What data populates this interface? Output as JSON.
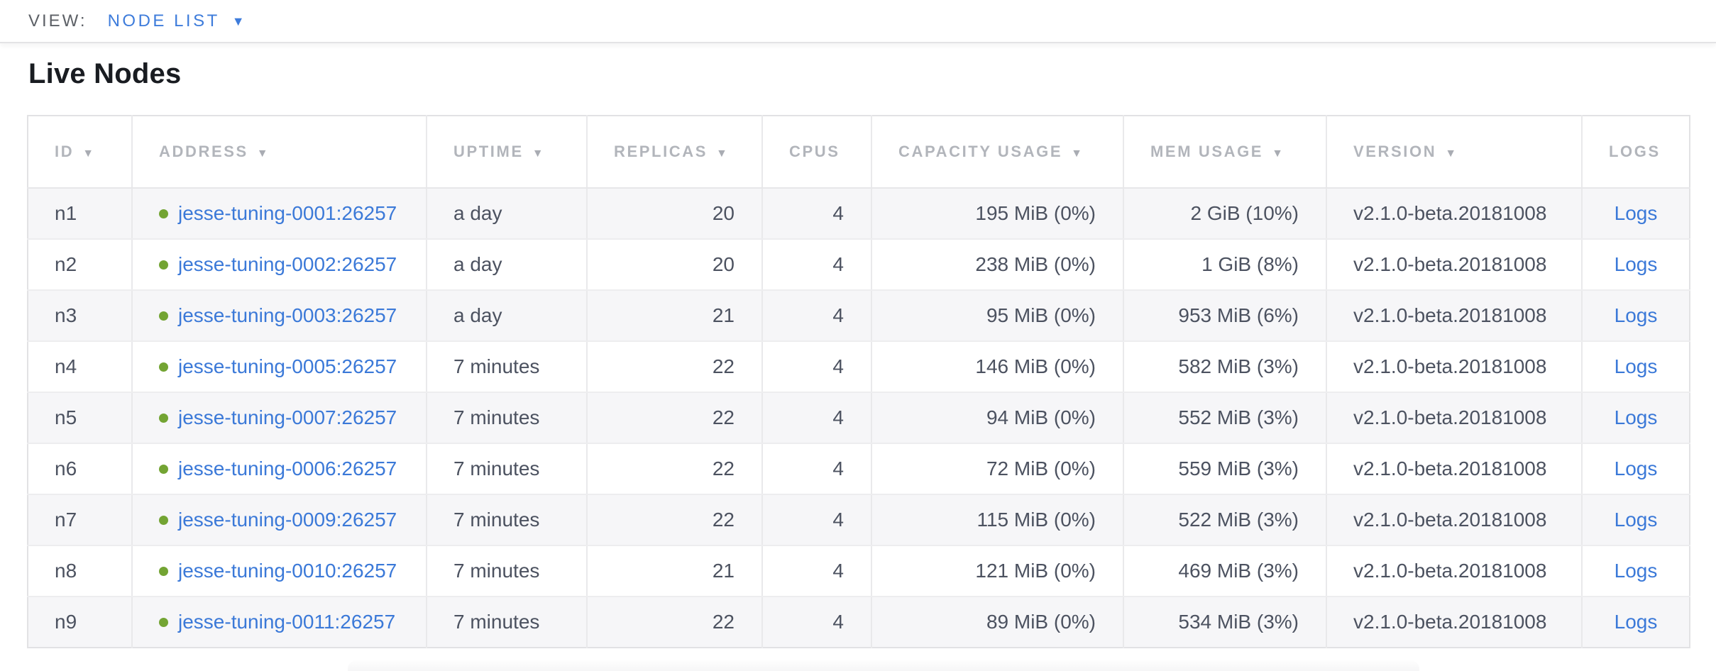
{
  "view_bar": {
    "label": "VIEW:",
    "selected": "NODE LIST"
  },
  "icons": {
    "caret_down": "▼",
    "sort_desc": "▼",
    "health_dot": "circle"
  },
  "page": {
    "title": "Live Nodes"
  },
  "colors": {
    "accent_blue": "#3e7cdb",
    "link_blue": "#3b79d8",
    "healthy_green": "#73a433",
    "header_gray": "#b2b5bb",
    "cell_text": "#4c5260",
    "row_alt_bg": "#f6f6f8",
    "border": "#e9e9eb"
  },
  "table": {
    "columns": [
      {
        "label": "ID",
        "sortable": true
      },
      {
        "label": "ADDRESS",
        "sortable": true
      },
      {
        "label": "UPTIME",
        "sortable": true
      },
      {
        "label": "REPLICAS",
        "sortable": true
      },
      {
        "label": "CPUS",
        "sortable": false
      },
      {
        "label": "CAPACITY USAGE",
        "sortable": true
      },
      {
        "label": "MEM USAGE",
        "sortable": true
      },
      {
        "label": "VERSION",
        "sortable": true
      },
      {
        "label": "LOGS",
        "sortable": false
      }
    ],
    "rows": [
      {
        "id": "n1",
        "address": "jesse-tuning-0001:26257",
        "status": "live",
        "uptime": "a day",
        "replicas": "20",
        "cpus": "4",
        "capacity_usage": "195 MiB (0%)",
        "mem_usage": "2 GiB (10%)",
        "version": "v2.1.0-beta.20181008",
        "logs": "Logs"
      },
      {
        "id": "n2",
        "address": "jesse-tuning-0002:26257",
        "status": "live",
        "uptime": "a day",
        "replicas": "20",
        "cpus": "4",
        "capacity_usage": "238 MiB (0%)",
        "mem_usage": "1 GiB (8%)",
        "version": "v2.1.0-beta.20181008",
        "logs": "Logs"
      },
      {
        "id": "n3",
        "address": "jesse-tuning-0003:26257",
        "status": "live",
        "uptime": "a day",
        "replicas": "21",
        "cpus": "4",
        "capacity_usage": "95 MiB (0%)",
        "mem_usage": "953 MiB (6%)",
        "version": "v2.1.0-beta.20181008",
        "logs": "Logs"
      },
      {
        "id": "n4",
        "address": "jesse-tuning-0005:26257",
        "status": "live",
        "uptime": "7 minutes",
        "replicas": "22",
        "cpus": "4",
        "capacity_usage": "146 MiB (0%)",
        "mem_usage": "582 MiB (3%)",
        "version": "v2.1.0-beta.20181008",
        "logs": "Logs"
      },
      {
        "id": "n5",
        "address": "jesse-tuning-0007:26257",
        "status": "live",
        "uptime": "7 minutes",
        "replicas": "22",
        "cpus": "4",
        "capacity_usage": "94 MiB (0%)",
        "mem_usage": "552 MiB (3%)",
        "version": "v2.1.0-beta.20181008",
        "logs": "Logs"
      },
      {
        "id": "n6",
        "address": "jesse-tuning-0006:26257",
        "status": "live",
        "uptime": "7 minutes",
        "replicas": "22",
        "cpus": "4",
        "capacity_usage": "72 MiB (0%)",
        "mem_usage": "559 MiB (3%)",
        "version": "v2.1.0-beta.20181008",
        "logs": "Logs"
      },
      {
        "id": "n7",
        "address": "jesse-tuning-0009:26257",
        "status": "live",
        "uptime": "7 minutes",
        "replicas": "22",
        "cpus": "4",
        "capacity_usage": "115 MiB (0%)",
        "mem_usage": "522 MiB (3%)",
        "version": "v2.1.0-beta.20181008",
        "logs": "Logs"
      },
      {
        "id": "n8",
        "address": "jesse-tuning-0010:26257",
        "status": "live",
        "uptime": "7 minutes",
        "replicas": "21",
        "cpus": "4",
        "capacity_usage": "121 MiB (0%)",
        "mem_usage": "469 MiB (3%)",
        "version": "v2.1.0-beta.20181008",
        "logs": "Logs"
      },
      {
        "id": "n9",
        "address": "jesse-tuning-0011:26257",
        "status": "live",
        "uptime": "7 minutes",
        "replicas": "22",
        "cpus": "4",
        "capacity_usage": "89 MiB (0%)",
        "mem_usage": "534 MiB (3%)",
        "version": "v2.1.0-beta.20181008",
        "logs": "Logs"
      }
    ]
  }
}
